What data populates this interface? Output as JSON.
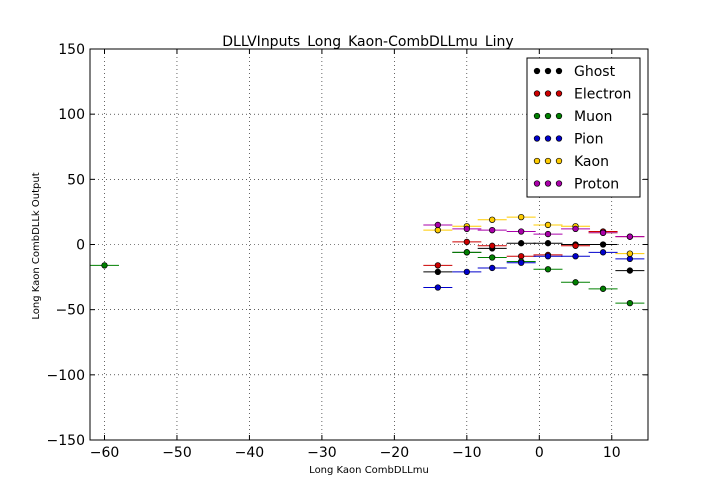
{
  "chart_data": {
    "type": "scatter",
    "title": "DLLVInputs_Long_Kaon-CombDLLmu_Liny",
    "xlabel": "Long Kaon CombDLLmu",
    "ylabel": "Long Kaon CombDLLk Output",
    "xlim": [
      -62,
      15
    ],
    "ylim": [
      -150,
      150
    ],
    "x_ticks": [
      -60,
      -50,
      -40,
      -30,
      -20,
      -10,
      0,
      10
    ],
    "y_ticks": [
      -150,
      -100,
      -50,
      0,
      50,
      100,
      150
    ],
    "x_tick_labels": [
      "−60",
      "−50",
      "−40",
      "−30",
      "−20",
      "−10",
      "0",
      "10"
    ],
    "y_tick_labels": [
      "−150",
      "−100",
      "−50",
      "0",
      "50",
      "100",
      "150"
    ],
    "grid": true,
    "legend_position": "top-right",
    "x_bin_half_width": 2,
    "series": [
      {
        "name": "Ghost",
        "color": "#000000",
        "x": [
          -14,
          -10,
          -6.5,
          -2.5,
          1.2,
          5,
          8.8,
          12.5
        ],
        "y": [
          -21,
          -6,
          -3,
          1,
          1,
          0,
          0,
          -20
        ]
      },
      {
        "name": "Electron",
        "color": "#cc0000",
        "x": [
          -14,
          -10,
          -6.5,
          -2.5,
          1.2,
          5,
          8.8,
          12.5
        ],
        "y": [
          -16,
          2,
          -1,
          -9,
          -8,
          -1,
          10,
          6
        ]
      },
      {
        "name": "Muon",
        "color": "#008000",
        "x": [
          -60,
          -10,
          -6.5,
          -2.5,
          1.2,
          5,
          8.8,
          12.5
        ],
        "y": [
          -16,
          -6,
          -10,
          -13,
          -19,
          -29,
          -34,
          -45
        ]
      },
      {
        "name": "Pion",
        "color": "#0000cc",
        "x": [
          -14,
          -10,
          -6.5,
          -2.5,
          1.2,
          5,
          8.8,
          12.5
        ],
        "y": [
          -33,
          -21,
          -18,
          -14,
          -9,
          -9,
          -6,
          -11
        ]
      },
      {
        "name": "Kaon",
        "color": "#ffcc00",
        "x": [
          -14,
          -10,
          -6.5,
          -2.5,
          1.2,
          5,
          8.8,
          12.5
        ],
        "y": [
          11,
          14,
          19,
          21,
          15,
          14,
          9,
          -7
        ]
      },
      {
        "name": "Proton",
        "color": "#aa00aa",
        "x": [
          -14,
          -10,
          -6.5,
          -2.5,
          1.2,
          5,
          8.8,
          12.5
        ],
        "y": [
          15,
          12,
          11,
          10,
          8,
          12,
          9,
          6
        ]
      }
    ]
  }
}
